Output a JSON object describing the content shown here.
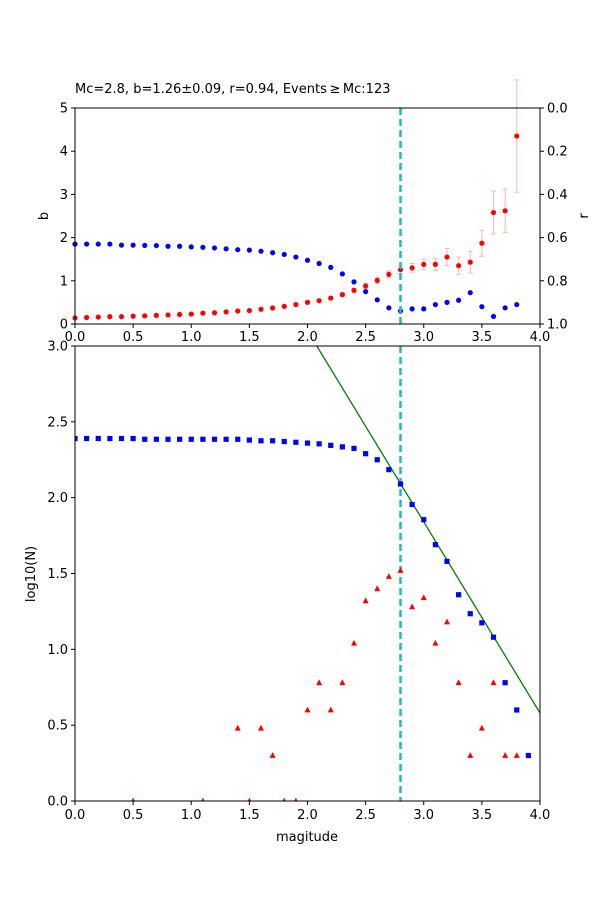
{
  "chart_data": [
    {
      "type": "scatter",
      "title": "Mc=2.8, b=1.26±0.09, r=0.94, Events ≥ Mc:123",
      "xlabel": "",
      "ylabel": "b",
      "y2label": "r",
      "xlim": [
        0,
        4
      ],
      "ylim": [
        0,
        5
      ],
      "y2lim": [
        1.0,
        0.0
      ],
      "y2_inverted": true,
      "xticks": [
        "0.0",
        "0.5",
        "1.0",
        "1.5",
        "2.0",
        "2.5",
        "3.0",
        "3.5",
        "4.0"
      ],
      "yticks": [
        "0",
        "1",
        "2",
        "3",
        "4",
        "5"
      ],
      "y2ticks": [
        "0.0",
        "0.2",
        "0.4",
        "0.6",
        "0.8",
        "1.0"
      ],
      "mc_line": 2.8,
      "colors": {
        "b": "#ff0000",
        "b_error": "#ffb3b3",
        "r": "#0000ff",
        "mc": "#17bfbf"
      },
      "series": [
        {
          "axis": "left",
          "marker": "circle",
          "x": [
            0.0,
            0.1,
            0.2,
            0.3,
            0.4,
            0.5,
            0.6,
            0.7,
            0.8,
            0.9,
            1.0,
            1.1,
            1.2,
            1.3,
            1.4,
            1.5,
            1.6,
            1.7,
            1.8,
            1.9,
            2.0,
            2.1,
            2.2,
            2.3,
            2.4,
            2.5,
            2.6,
            2.7,
            2.8,
            2.9,
            3.0,
            3.1,
            3.2,
            3.3,
            3.4,
            3.5,
            3.6,
            3.7,
            3.8
          ],
          "values": [
            0.14,
            0.15,
            0.16,
            0.17,
            0.17,
            0.18,
            0.19,
            0.2,
            0.21,
            0.22,
            0.23,
            0.25,
            0.26,
            0.28,
            0.3,
            0.31,
            0.34,
            0.37,
            0.41,
            0.45,
            0.5,
            0.54,
            0.6,
            0.68,
            0.78,
            0.88,
            1.01,
            1.15,
            1.26,
            1.3,
            1.38,
            1.38,
            1.55,
            1.35,
            1.43,
            1.87,
            2.58,
            2.62,
            4.35
          ],
          "errors": [
            0.01,
            0.01,
            0.01,
            0.01,
            0.01,
            0.01,
            0.01,
            0.01,
            0.01,
            0.01,
            0.01,
            0.01,
            0.01,
            0.01,
            0.02,
            0.02,
            0.02,
            0.02,
            0.02,
            0.03,
            0.03,
            0.03,
            0.04,
            0.04,
            0.05,
            0.06,
            0.07,
            0.08,
            0.09,
            0.1,
            0.12,
            0.14,
            0.2,
            0.2,
            0.25,
            0.3,
            0.5,
            0.5,
            1.3
          ]
        },
        {
          "axis": "right",
          "marker": "circle",
          "x": [
            0.0,
            0.1,
            0.2,
            0.3,
            0.4,
            0.5,
            0.6,
            0.7,
            0.8,
            0.9,
            1.0,
            1.1,
            1.2,
            1.3,
            1.4,
            1.5,
            1.6,
            1.7,
            1.8,
            1.9,
            2.0,
            2.1,
            2.2,
            2.3,
            2.4,
            2.5,
            2.6,
            2.7,
            2.8,
            2.9,
            3.0,
            3.1,
            3.2,
            3.3,
            3.4,
            3.5,
            3.6,
            3.7,
            3.8
          ],
          "values": [
            0.63,
            0.63,
            0.63,
            0.63,
            0.635,
            0.635,
            0.636,
            0.637,
            0.64,
            0.64,
            0.643,
            0.645,
            0.648,
            0.652,
            0.656,
            0.658,
            0.663,
            0.67,
            0.678,
            0.69,
            0.705,
            0.72,
            0.738,
            0.768,
            0.805,
            0.85,
            0.888,
            0.925,
            0.94,
            0.93,
            0.93,
            0.91,
            0.9,
            0.89,
            0.855,
            0.92,
            0.965,
            0.925,
            0.91
          ]
        }
      ]
    },
    {
      "type": "scatter",
      "xlabel": "magitude",
      "ylabel": "log10(N)",
      "xlim": [
        0,
        4
      ],
      "ylim": [
        0,
        3
      ],
      "xticks": [
        "0.0",
        "0.5",
        "1.0",
        "1.5",
        "2.0",
        "2.5",
        "3.0",
        "3.5",
        "4.0"
      ],
      "yticks": [
        "0.0",
        "0.5",
        "1.0",
        "1.5",
        "2.0",
        "2.5",
        "3.0"
      ],
      "mc_line": 2.8,
      "fit_line": {
        "x": [
          2.08,
          4.0
        ],
        "y": [
          3.0,
          0.58
        ],
        "color": "#008000"
      },
      "colors": {
        "cumulative": "#0000ff",
        "incremental": "#ff0000",
        "mc": "#17bfbf"
      },
      "series": [
        {
          "marker": "square",
          "x": [
            0.0,
            0.1,
            0.2,
            0.3,
            0.4,
            0.5,
            0.6,
            0.7,
            0.8,
            0.9,
            1.0,
            1.1,
            1.2,
            1.3,
            1.4,
            1.5,
            1.6,
            1.7,
            1.8,
            1.9,
            2.0,
            2.1,
            2.2,
            2.3,
            2.4,
            2.5,
            2.6,
            2.7,
            2.8,
            2.9,
            3.0,
            3.1,
            3.2,
            3.3,
            3.4,
            3.5,
            3.6,
            3.7,
            3.8,
            3.9
          ],
          "values": [
            2.39,
            2.39,
            2.39,
            2.39,
            2.39,
            2.39,
            2.385,
            2.385,
            2.385,
            2.385,
            2.385,
            2.385,
            2.385,
            2.385,
            2.385,
            2.38,
            2.375,
            2.375,
            2.37,
            2.365,
            2.36,
            2.355,
            2.345,
            2.335,
            2.325,
            2.29,
            2.25,
            2.185,
            2.09,
            1.955,
            1.855,
            1.69,
            1.58,
            1.36,
            1.235,
            1.175,
            1.08,
            0.78,
            0.6,
            0.3
          ]
        },
        {
          "marker": "triangle",
          "x": [
            0.5,
            1.1,
            1.4,
            1.5,
            1.6,
            1.7,
            1.8,
            1.9,
            2.0,
            2.1,
            2.2,
            2.3,
            2.4,
            2.5,
            2.6,
            2.7,
            2.8,
            2.9,
            3.0,
            3.1,
            3.2,
            3.3,
            3.4,
            3.5,
            3.6,
            3.7,
            3.8
          ],
          "values": [
            0.0,
            0.0,
            0.48,
            0.0,
            0.48,
            0.3,
            0.0,
            0.0,
            0.6,
            0.78,
            0.6,
            0.78,
            1.04,
            1.32,
            1.4,
            1.48,
            1.52,
            1.28,
            1.34,
            1.04,
            1.18,
            0.78,
            0.3,
            0.48,
            0.78,
            0.3,
            0.3
          ]
        }
      ]
    }
  ]
}
